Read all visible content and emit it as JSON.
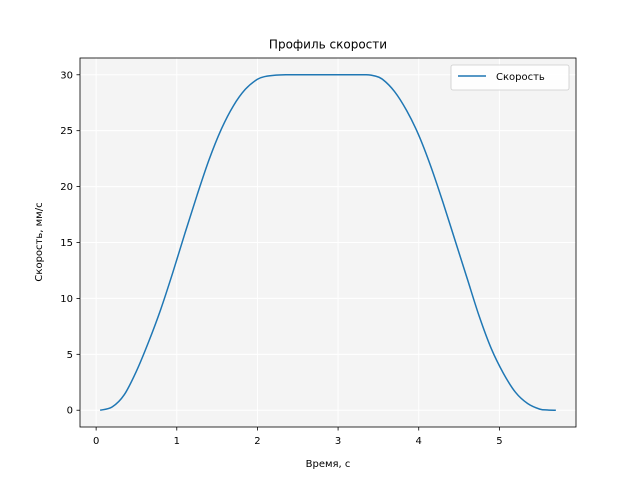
{
  "chart_data": {
    "type": "line",
    "title": "Профиль скорости",
    "xlabel": "Время, с",
    "ylabel": "Скорость, мм/с",
    "xlim": [
      -0.2,
      5.95
    ],
    "ylim": [
      -1.5,
      31.5
    ],
    "xticks": [
      0,
      1,
      2,
      3,
      4,
      5
    ],
    "yticks": [
      0,
      5,
      10,
      15,
      20,
      25,
      30
    ],
    "grid": true,
    "legend": "top-right",
    "series": [
      {
        "name": "Скорость",
        "color": "#1f77b4",
        "x": [
          0.05,
          0.2,
          0.35,
          0.5,
          0.65,
          0.8,
          0.95,
          1.1,
          1.25,
          1.4,
          1.55,
          1.7,
          1.85,
          2.0,
          2.1,
          2.2,
          2.35,
          2.5,
          2.75,
          3.0,
          3.2,
          3.35,
          3.45,
          3.55,
          3.7,
          3.85,
          4.0,
          4.15,
          4.3,
          4.45,
          4.6,
          4.75,
          4.9,
          5.05,
          5.2,
          5.35,
          5.5,
          5.6,
          5.7
        ],
        "values": [
          0.0,
          0.3,
          1.4,
          3.5,
          6.1,
          9.0,
          12.3,
          15.8,
          19.2,
          22.4,
          25.1,
          27.2,
          28.7,
          29.6,
          29.85,
          29.95,
          30.0,
          30.0,
          30.0,
          30.0,
          30.0,
          30.0,
          29.9,
          29.6,
          28.5,
          26.8,
          24.6,
          21.8,
          18.6,
          15.2,
          11.8,
          8.4,
          5.5,
          3.3,
          1.6,
          0.6,
          0.1,
          0.02,
          0.0
        ]
      }
    ]
  }
}
